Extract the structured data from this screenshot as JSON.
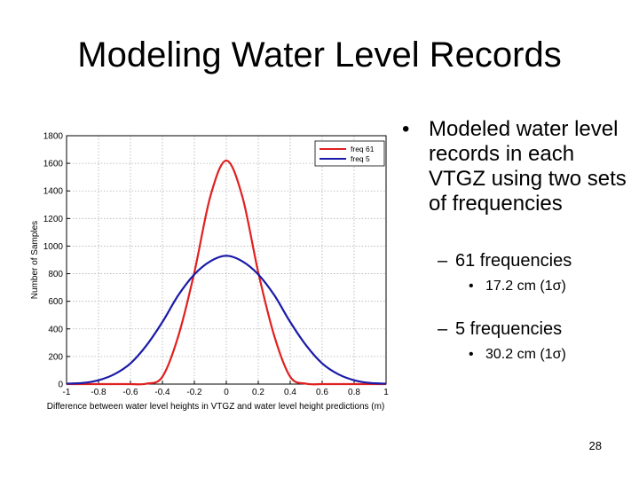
{
  "slide": {
    "title": "Modeling Water Level Records",
    "page_number": "28"
  },
  "bullets": {
    "main": "Modeled water level records in each VTGZ using two sets of frequencies",
    "sub1": "61 frequencies",
    "sub1_detail": "17.2 cm (1σ)",
    "sub2": "5 frequencies",
    "sub2_detail": "30.2 cm (1σ)",
    "bullet_glyph": "•",
    "dash_glyph": "–"
  },
  "chart_data": {
    "type": "line",
    "xlabel": "Difference between water level heights in VTGZ and water level height predictions (m)",
    "ylabel": "Number of Samples",
    "xlim": [
      -1,
      1
    ],
    "ylim": [
      0,
      1800
    ],
    "x_ticks": [
      -1,
      -0.8,
      -0.6,
      -0.4,
      -0.2,
      0,
      0.2,
      0.4,
      0.6,
      0.8,
      1
    ],
    "x_tick_labels": [
      "-1",
      "-0.8",
      "-0.6",
      "-0.4",
      "-0.2",
      "0",
      "0.2",
      "0.4",
      "0.6",
      "0.8",
      "1"
    ],
    "y_ticks": [
      0,
      200,
      400,
      600,
      800,
      1000,
      1200,
      1400,
      1600,
      1800
    ],
    "y_tick_labels": [
      "0",
      "200",
      "400",
      "600",
      "800",
      "1000",
      "1200",
      "1400",
      "1600",
      "1800"
    ],
    "grid": true,
    "legend_position": "top-right",
    "x": [
      -1,
      -0.9,
      -0.8,
      -0.7,
      -0.6,
      -0.5,
      -0.4,
      -0.3,
      -0.2,
      -0.1,
      0,
      0.1,
      0.2,
      0.3,
      0.4,
      0.5,
      0.6,
      0.7,
      0.8,
      0.9,
      1
    ],
    "series": [
      {
        "name": "freq 61",
        "color": "#e02020",
        "values": [
          0,
          0,
          0,
          0,
          0,
          3,
          53,
          350,
          810,
          1360,
          1620,
          1360,
          810,
          350,
          53,
          3,
          0,
          0,
          0,
          0,
          0
        ]
      },
      {
        "name": "freq 5",
        "color": "#1a1aa8",
        "values": [
          3,
          8,
          28,
          72,
          150,
          280,
          450,
          645,
          795,
          890,
          930,
          890,
          795,
          645,
          450,
          280,
          150,
          72,
          28,
          8,
          3
        ]
      }
    ]
  }
}
